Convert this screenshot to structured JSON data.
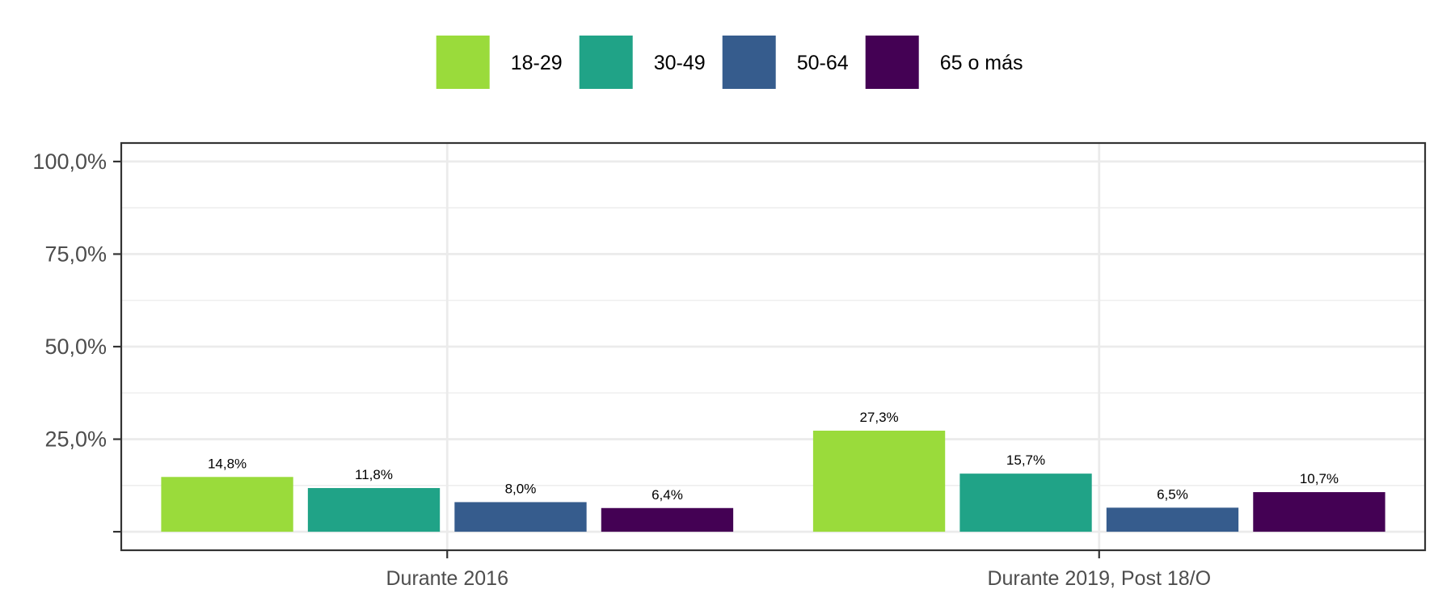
{
  "chart_data": {
    "type": "bar",
    "categories": [
      "Durante 2016",
      "Durante 2019, Post 18/O"
    ],
    "series": [
      {
        "name": "18-29",
        "color": "#9ADB3B",
        "values": [
          14.8,
          27.3
        ],
        "labels": [
          "14,8%",
          "27,3%"
        ]
      },
      {
        "name": "30-49",
        "color": "#20A387",
        "values": [
          11.8,
          15.7
        ],
        "labels": [
          "11,8%",
          "15,7%"
        ]
      },
      {
        "name": "50-64",
        "color": "#365C8D",
        "values": [
          8.0,
          6.5
        ],
        "labels": [
          "8,0%",
          "6,5%"
        ]
      },
      {
        "name": "65 o más",
        "color": "#440154",
        "values": [
          6.4,
          10.7
        ],
        "labels": [
          "6,4%",
          "10,7%"
        ]
      }
    ],
    "yticks": [
      {
        "value": 0,
        "label": ""
      },
      {
        "value": 25,
        "label": "25,0%"
      },
      {
        "value": 50,
        "label": "50,0%"
      },
      {
        "value": 75,
        "label": "75,0%"
      },
      {
        "value": 100,
        "label": "100,0%"
      }
    ],
    "ylim": [
      -5,
      105
    ],
    "title": "",
    "xlabel": "",
    "ylabel": "",
    "legend_position": "top",
    "grid": true
  }
}
